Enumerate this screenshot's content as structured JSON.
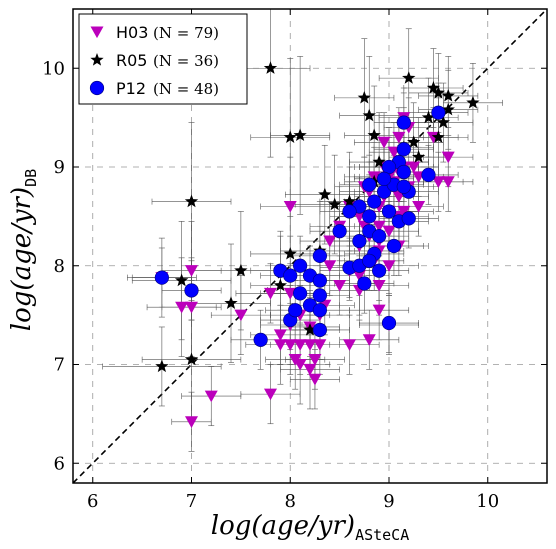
{
  "chart_data": {
    "type": "scatter",
    "title": "",
    "xlabel": {
      "main": "log(age/yr)",
      "sub": "ASteCA"
    },
    "ylabel": {
      "main": "log(age/yr)",
      "sub": "DB"
    },
    "xlim": [
      5.8,
      10.6
    ],
    "ylim": [
      5.8,
      10.6
    ],
    "xticks": [
      "6",
      "7",
      "8",
      "9",
      "10"
    ],
    "yticks": [
      "6",
      "7",
      "8",
      "9",
      "10"
    ],
    "grid": true,
    "identity_line": true,
    "legend_position": "top-left",
    "series": [
      {
        "name": "H03",
        "n_label": "(N = 79)",
        "color": "#bb00bb",
        "marker": "triangle-down",
        "points": [
          [
            6.7,
            7.88,
            0.35,
            0.4
          ],
          [
            6.9,
            7.58,
            0.35,
            0.5
          ],
          [
            7.0,
            7.95,
            0.3,
            0.5
          ],
          [
            7.0,
            7.58,
            0.3,
            0.5
          ],
          [
            7.0,
            6.42,
            0.2,
            0.3
          ],
          [
            7.2,
            6.68,
            0.3,
            0.3
          ],
          [
            7.5,
            7.5,
            0.3,
            0.4
          ],
          [
            7.8,
            7.72,
            0.35,
            0.3
          ],
          [
            7.8,
            6.7,
            0.3,
            0.3
          ],
          [
            7.9,
            7.2,
            0.35,
            0.4
          ],
          [
            8.0,
            8.6,
            0.3,
            0.5
          ],
          [
            8.0,
            7.72,
            0.3,
            0.3
          ],
          [
            8.0,
            7.4,
            0.3,
            0.4
          ],
          [
            8.0,
            7.2,
            0.3,
            0.3
          ],
          [
            8.1,
            7.5,
            0.3,
            0.3
          ],
          [
            8.1,
            7.2,
            0.3,
            0.3
          ],
          [
            8.1,
            7.0,
            0.3,
            0.4
          ],
          [
            8.2,
            7.38,
            0.3,
            0.3
          ],
          [
            8.2,
            7.2,
            0.3,
            0.3
          ],
          [
            8.2,
            6.95,
            0.3,
            0.4
          ],
          [
            8.25,
            6.85,
            0.25,
            0.3
          ],
          [
            8.3,
            7.2,
            0.3,
            0.3
          ],
          [
            8.3,
            7.5,
            0.3,
            0.3
          ],
          [
            8.4,
            8.25,
            0.3,
            0.4
          ],
          [
            8.5,
            8.4,
            0.3,
            0.4
          ],
          [
            8.6,
            8.6,
            0.3,
            0.4
          ],
          [
            8.6,
            7.2,
            0.3,
            0.3
          ],
          [
            8.7,
            7.9,
            0.3,
            0.4
          ],
          [
            8.7,
            8.5,
            0.3,
            0.4
          ],
          [
            8.75,
            8.8,
            0.3,
            0.3
          ],
          [
            8.8,
            8.5,
            0.3,
            0.4
          ],
          [
            8.8,
            8.3,
            0.3,
            0.4
          ],
          [
            8.8,
            7.25,
            0.3,
            0.3
          ],
          [
            8.85,
            8.9,
            0.3,
            0.3
          ],
          [
            8.9,
            8.6,
            0.3,
            0.4
          ],
          [
            8.9,
            8.4,
            0.25,
            0.3
          ],
          [
            8.9,
            8.15,
            0.25,
            0.3
          ],
          [
            8.9,
            7.8,
            0.3,
            0.3
          ],
          [
            8.9,
            7.55,
            0.3,
            0.3
          ],
          [
            8.95,
            9.0,
            0.3,
            0.3
          ],
          [
            8.95,
            8.7,
            0.3,
            0.3
          ],
          [
            9.0,
            8.9,
            0.3,
            0.3
          ],
          [
            9.0,
            8.55,
            0.3,
            0.3
          ],
          [
            9.0,
            8.35,
            0.3,
            0.3
          ],
          [
            9.0,
            7.4,
            0.3,
            0.3
          ],
          [
            9.05,
            9.15,
            0.25,
            0.3
          ],
          [
            9.1,
            9.3,
            0.25,
            0.3
          ],
          [
            9.1,
            8.95,
            0.3,
            0.3
          ],
          [
            9.1,
            8.7,
            0.3,
            0.3
          ],
          [
            9.1,
            8.5,
            0.3,
            0.3
          ],
          [
            9.15,
            9.5,
            0.25,
            0.3
          ],
          [
            9.15,
            9.0,
            0.3,
            0.3
          ],
          [
            9.2,
            9.4,
            0.25,
            0.3
          ],
          [
            9.2,
            8.8,
            0.3,
            0.3
          ],
          [
            9.25,
            9.0,
            0.25,
            0.3
          ],
          [
            9.3,
            8.6,
            0.25,
            0.3
          ],
          [
            9.45,
            9.3,
            0.25,
            0.3
          ],
          [
            9.5,
            8.85,
            0.25,
            0.3
          ],
          [
            9.6,
            8.85,
            0.25,
            0.3
          ],
          [
            9.6,
            9.1,
            0.25,
            0.3
          ],
          [
            8.7,
            8.2,
            0.3,
            0.3
          ],
          [
            8.8,
            8.75,
            0.3,
            0.3
          ],
          [
            8.85,
            8.05,
            0.3,
            0.3
          ],
          [
            8.9,
            8.25,
            0.3,
            0.3
          ],
          [
            8.75,
            8.4,
            0.3,
            0.3
          ],
          [
            8.6,
            7.95,
            0.3,
            0.3
          ],
          [
            8.7,
            7.75,
            0.3,
            0.3
          ],
          [
            8.4,
            8.0,
            0.3,
            0.3
          ],
          [
            8.5,
            7.8,
            0.3,
            0.3
          ],
          [
            8.35,
            7.6,
            0.3,
            0.3
          ],
          [
            7.9,
            7.3,
            0.3,
            0.3
          ],
          [
            8.05,
            7.05,
            0.3,
            0.3
          ],
          [
            8.25,
            7.05,
            0.3,
            0.3
          ],
          [
            9.0,
            8.0,
            0.3,
            0.3
          ],
          [
            9.1,
            8.2,
            0.3,
            0.3
          ],
          [
            9.3,
            8.9,
            0.25,
            0.3
          ],
          [
            9.15,
            8.55,
            0.3,
            0.3
          ],
          [
            8.95,
            9.25,
            0.3,
            0.3
          ],
          [
            9.05,
            8.85,
            0.3,
            0.3
          ]
        ]
      },
      {
        "name": "R05",
        "n_label": "(N = 36)",
        "color": "#000000",
        "marker": "star",
        "points": [
          [
            6.7,
            6.98,
            0.6,
            0.4
          ],
          [
            6.9,
            7.85,
            0.5,
            0.6
          ],
          [
            7.0,
            8.65,
            0.4,
            0.8
          ],
          [
            7.0,
            7.05,
            0.5,
            0.6
          ],
          [
            7.4,
            7.62,
            0.4,
            0.6
          ],
          [
            7.5,
            7.95,
            0.5,
            0.6
          ],
          [
            7.8,
            10.0,
            0.4,
            0.9
          ],
          [
            7.9,
            7.8,
            0.3,
            0.5
          ],
          [
            8.0,
            8.12,
            0.4,
            0.5
          ],
          [
            8.0,
            9.3,
            0.4,
            0.8
          ],
          [
            8.1,
            9.32,
            0.3,
            0.8
          ],
          [
            8.2,
            7.35,
            0.3,
            0.4
          ],
          [
            8.3,
            8.15,
            0.4,
            0.5
          ],
          [
            8.35,
            8.72,
            0.4,
            0.5
          ],
          [
            8.45,
            8.62,
            0.4,
            0.5
          ],
          [
            8.6,
            8.65,
            0.3,
            0.5
          ],
          [
            8.75,
            9.7,
            0.3,
            0.6
          ],
          [
            8.8,
            9.52,
            0.3,
            0.6
          ],
          [
            8.85,
            9.32,
            0.3,
            0.5
          ],
          [
            8.9,
            9.05,
            0.3,
            0.5
          ],
          [
            8.95,
            8.9,
            0.3,
            0.4
          ],
          [
            9.0,
            9.0,
            0.3,
            0.4
          ],
          [
            9.1,
            9.05,
            0.3,
            0.4
          ],
          [
            9.15,
            9.2,
            0.3,
            0.4
          ],
          [
            9.2,
            9.9,
            0.3,
            0.5
          ],
          [
            9.3,
            9.1,
            0.3,
            0.4
          ],
          [
            9.4,
            9.5,
            0.3,
            0.4
          ],
          [
            9.45,
            9.8,
            0.3,
            0.4
          ],
          [
            9.5,
            9.3,
            0.3,
            0.4
          ],
          [
            9.5,
            9.75,
            0.3,
            0.4
          ],
          [
            9.55,
            9.45,
            0.3,
            0.4
          ],
          [
            9.6,
            9.58,
            0.3,
            0.4
          ],
          [
            9.6,
            9.72,
            0.3,
            0.4
          ],
          [
            9.85,
            9.65,
            0.3,
            0.4
          ],
          [
            8.85,
            8.85,
            0.3,
            0.4
          ],
          [
            9.25,
            9.25,
            0.3,
            0.4
          ]
        ]
      },
      {
        "name": "P12",
        "n_label": "(N = 48)",
        "color": "#0000ff",
        "marker": "circle",
        "points": [
          [
            6.7,
            7.88,
            0.3,
            0.3
          ],
          [
            7.0,
            7.75,
            0.3,
            0.3
          ],
          [
            7.7,
            7.25,
            0.3,
            0.3
          ],
          [
            7.9,
            7.95,
            0.3,
            0.4
          ],
          [
            8.0,
            7.9,
            0.3,
            0.4
          ],
          [
            8.0,
            7.45,
            0.3,
            0.3
          ],
          [
            8.05,
            7.55,
            0.3,
            0.3
          ],
          [
            8.1,
            7.72,
            0.3,
            0.3
          ],
          [
            8.1,
            8.0,
            0.3,
            0.3
          ],
          [
            8.2,
            7.6,
            0.3,
            0.3
          ],
          [
            8.2,
            7.9,
            0.3,
            0.3
          ],
          [
            8.3,
            8.1,
            0.3,
            0.3
          ],
          [
            8.3,
            7.85,
            0.3,
            0.3
          ],
          [
            8.3,
            7.7,
            0.3,
            0.3
          ],
          [
            8.3,
            7.55,
            0.3,
            0.3
          ],
          [
            8.3,
            7.35,
            0.3,
            0.3
          ],
          [
            8.6,
            7.98,
            0.3,
            0.3
          ],
          [
            8.7,
            8.6,
            0.3,
            0.3
          ],
          [
            8.7,
            8.25,
            0.3,
            0.3
          ],
          [
            8.7,
            8.0,
            0.3,
            0.3
          ],
          [
            8.75,
            7.82,
            0.3,
            0.3
          ],
          [
            8.8,
            8.82,
            0.3,
            0.3
          ],
          [
            8.8,
            8.5,
            0.3,
            0.3
          ],
          [
            8.8,
            8.35,
            0.3,
            0.3
          ],
          [
            8.85,
            8.12,
            0.3,
            0.3
          ],
          [
            8.9,
            7.95,
            0.3,
            0.3
          ],
          [
            8.9,
            8.3,
            0.3,
            0.3
          ],
          [
            8.95,
            8.75,
            0.3,
            0.3
          ],
          [
            9.0,
            7.42,
            0.3,
            0.3
          ],
          [
            9.05,
            8.82,
            0.3,
            0.3
          ],
          [
            9.1,
            9.05,
            0.3,
            0.3
          ],
          [
            9.1,
            8.45,
            0.3,
            0.3
          ],
          [
            9.15,
            9.18,
            0.3,
            0.3
          ],
          [
            9.15,
            8.95,
            0.3,
            0.3
          ],
          [
            9.15,
            9.45,
            0.3,
            0.3
          ],
          [
            9.2,
            8.75,
            0.3,
            0.3
          ],
          [
            9.2,
            8.48,
            0.3,
            0.3
          ],
          [
            9.4,
            8.92,
            0.3,
            0.3
          ],
          [
            9.5,
            9.55,
            0.3,
            0.3
          ],
          [
            8.5,
            8.35,
            0.3,
            0.3
          ],
          [
            8.6,
            8.55,
            0.3,
            0.3
          ],
          [
            8.8,
            8.05,
            0.3,
            0.3
          ],
          [
            9.0,
            8.55,
            0.3,
            0.3
          ],
          [
            9.05,
            8.2,
            0.3,
            0.3
          ],
          [
            8.85,
            8.65,
            0.3,
            0.3
          ],
          [
            9.0,
            9.0,
            0.3,
            0.3
          ],
          [
            9.15,
            8.8,
            0.3,
            0.3
          ],
          [
            8.95,
            8.88,
            0.3,
            0.3
          ]
        ]
      }
    ]
  }
}
